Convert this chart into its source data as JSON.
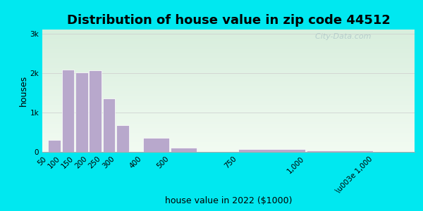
{
  "title": "Distribution of house value in zip code 44512",
  "xlabel": "house value in 2022 ($1000)",
  "ylabel": "houses",
  "bar_lefts": [
    50,
    100,
    150,
    200,
    250,
    300,
    400,
    500,
    750,
    1000
  ],
  "bar_widths": [
    50,
    50,
    50,
    50,
    50,
    50,
    100,
    100,
    250,
    250
  ],
  "bar_values": [
    310,
    2080,
    2020,
    2060,
    1350,
    680,
    360,
    100,
    80,
    30
  ],
  "bar_labels": [
    "50",
    "100",
    "150",
    "200",
    "250",
    "300",
    "400",
    "500",
    "750",
    "1,000",
    "\\u003e 1,000"
  ],
  "xtick_positions": [
    50,
    100,
    150,
    200,
    250,
    300,
    400,
    500,
    750,
    1000,
    1250
  ],
  "bar_color": "#b8a8cc",
  "bar_edgecolor": "#ffffff",
  "yticks": [
    0,
    1000,
    2000,
    3000
  ],
  "ytick_labels": [
    "0",
    "1k",
    "2k",
    "3k"
  ],
  "ylim": [
    0,
    3100
  ],
  "xlim": [
    30,
    1400
  ],
  "bg_outer": "#00e8f0",
  "bg_inner_color1": "#d8eedd",
  "bg_inner_color2": "#f2fbf2",
  "title_fontsize": 13,
  "axis_fontsize": 9,
  "tick_fontsize": 7.5,
  "watermark": "  City-Data.com"
}
